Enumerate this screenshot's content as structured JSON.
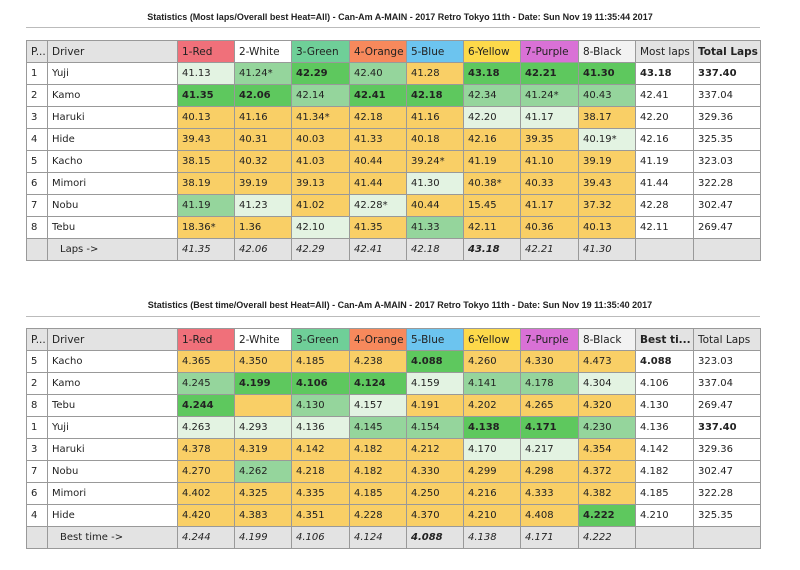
{
  "colors": {
    "Y": "#f9cf66",
    "L": "#e3f3e2",
    "M": "#95d59c",
    "D": "#5ec85e",
    "W": "#ffffff"
  },
  "tables": [
    {
      "title": "Statistics (Most laps/Overall best Heat=All) - Can-Am A-MAIN - 2017 Retro Tokyo 11th - Date: Sun Nov 19 11:35:44 2017",
      "headers": [
        {
          "label": "P...",
          "color": "#e3e3e3"
        },
        {
          "label": "Driver",
          "color": "#e3e3e3"
        },
        {
          "label": "1-Red",
          "color": "#f0707a"
        },
        {
          "label": "2-White",
          "color": "#ffffff"
        },
        {
          "label": "3-Green",
          "color": "#6fcf98"
        },
        {
          "label": "4-Orange",
          "color": "#f7895c"
        },
        {
          "label": "5-Blue",
          "color": "#6cc4ef"
        },
        {
          "label": "6-Yellow",
          "color": "#fdd94a"
        },
        {
          "label": "7-Purple",
          "color": "#d971d6"
        },
        {
          "label": "8-Black",
          "color": "#f2f2f2"
        },
        {
          "label": "Most laps",
          "color": "#e3e3e3"
        },
        {
          "label": "Total Laps",
          "color": "#e3e3e3",
          "bold": true
        }
      ],
      "rows": [
        {
          "pos": "1",
          "driver": "Yuji",
          "cells": [
            [
              "41.13",
              "L"
            ],
            [
              "41.24*",
              "M"
            ],
            [
              "42.29",
              "D",
              1
            ],
            [
              "42.40",
              "M"
            ],
            [
              "41.28",
              "Y"
            ],
            [
              "43.18",
              "D",
              1
            ],
            [
              "42.21",
              "D",
              1
            ],
            [
              "41.30",
              "D",
              1
            ],
            [
              "43.18",
              "W",
              1
            ],
            [
              "337.40",
              "W",
              1
            ]
          ]
        },
        {
          "pos": "2",
          "driver": "Kamo",
          "cells": [
            [
              "41.35",
              "D",
              1
            ],
            [
              "42.06",
              "D",
              1
            ],
            [
              "42.14",
              "M"
            ],
            [
              "42.41",
              "D",
              1
            ],
            [
              "42.18",
              "D",
              1
            ],
            [
              "42.34",
              "M"
            ],
            [
              "41.24*",
              "M"
            ],
            [
              "40.43",
              "M"
            ],
            [
              "42.41",
              "W"
            ],
            [
              "337.04",
              "W"
            ]
          ]
        },
        {
          "pos": "3",
          "driver": "Haruki",
          "cells": [
            [
              "40.13",
              "Y"
            ],
            [
              "41.16",
              "Y"
            ],
            [
              "41.34*",
              "Y"
            ],
            [
              "42.18",
              "Y"
            ],
            [
              "41.16",
              "Y"
            ],
            [
              "42.20",
              "L"
            ],
            [
              "41.17",
              "L"
            ],
            [
              "38.17",
              "Y"
            ],
            [
              "42.20",
              "W"
            ],
            [
              "329.36",
              "W"
            ]
          ]
        },
        {
          "pos": "4",
          "driver": "Hide",
          "cells": [
            [
              "39.43",
              "Y"
            ],
            [
              "40.31",
              "Y"
            ],
            [
              "40.03",
              "Y"
            ],
            [
              "41.33",
              "Y"
            ],
            [
              "40.18",
              "Y"
            ],
            [
              "42.16",
              "Y"
            ],
            [
              "39.35",
              "Y"
            ],
            [
              "40.19*",
              "L"
            ],
            [
              "42.16",
              "W"
            ],
            [
              "325.35",
              "W"
            ]
          ]
        },
        {
          "pos": "5",
          "driver": "Kacho",
          "cells": [
            [
              "38.15",
              "Y"
            ],
            [
              "40.32",
              "Y"
            ],
            [
              "41.03",
              "Y"
            ],
            [
              "40.44",
              "Y"
            ],
            [
              "39.24*",
              "Y"
            ],
            [
              "41.19",
              "Y"
            ],
            [
              "41.10",
              "Y"
            ],
            [
              "39.19",
              "Y"
            ],
            [
              "41.19",
              "W"
            ],
            [
              "323.03",
              "W"
            ]
          ]
        },
        {
          "pos": "6",
          "driver": "Mimori",
          "cells": [
            [
              "38.19",
              "Y"
            ],
            [
              "39.19",
              "Y"
            ],
            [
              "39.13",
              "Y"
            ],
            [
              "41.44",
              "Y"
            ],
            [
              "41.30",
              "L"
            ],
            [
              "40.38*",
              "Y"
            ],
            [
              "40.33",
              "Y"
            ],
            [
              "39.43",
              "Y"
            ],
            [
              "41.44",
              "W"
            ],
            [
              "322.28",
              "W"
            ]
          ]
        },
        {
          "pos": "7",
          "driver": "Nobu",
          "cells": [
            [
              "41.19",
              "M"
            ],
            [
              "41.23",
              "L"
            ],
            [
              "41.02",
              "Y"
            ],
            [
              "42.28*",
              "L"
            ],
            [
              "40.44",
              "Y"
            ],
            [
              "15.45",
              "Y"
            ],
            [
              "41.17",
              "Y"
            ],
            [
              "37.32",
              "Y"
            ],
            [
              "42.28",
              "W"
            ],
            [
              "302.47",
              "W"
            ]
          ]
        },
        {
          "pos": "8",
          "driver": "Tebu",
          "cells": [
            [
              "18.36*",
              "Y"
            ],
            [
              "1.36",
              "Y"
            ],
            [
              "42.10",
              "L"
            ],
            [
              "41.35",
              "Y"
            ],
            [
              "41.33",
              "M"
            ],
            [
              "42.11",
              "Y"
            ],
            [
              "40.36",
              "Y"
            ],
            [
              "40.13",
              "Y"
            ],
            [
              "42.11",
              "W"
            ],
            [
              "269.47",
              "W"
            ]
          ]
        }
      ],
      "footer": {
        "label": "Laps ->",
        "values": [
          [
            "41.35"
          ],
          [
            "42.06"
          ],
          [
            "42.29"
          ],
          [
            "42.41"
          ],
          [
            "42.18"
          ],
          [
            "43.18",
            1
          ],
          [
            "42.21"
          ],
          [
            "41.30"
          ],
          [
            ""
          ],
          [
            ""
          ]
        ]
      }
    },
    {
      "title": "Statistics (Best time/Overall best Heat=All) - Can-Am A-MAIN - 2017 Retro Tokyo 11th - Date: Sun Nov 19 11:35:40 2017",
      "headers": [
        {
          "label": "P...",
          "color": "#e3e3e3"
        },
        {
          "label": "Driver",
          "color": "#e3e3e3"
        },
        {
          "label": "1-Red",
          "color": "#f0707a"
        },
        {
          "label": "2-White",
          "color": "#ffffff"
        },
        {
          "label": "3-Green",
          "color": "#6fcf98"
        },
        {
          "label": "4-Orange",
          "color": "#f7895c"
        },
        {
          "label": "5-Blue",
          "color": "#6cc4ef"
        },
        {
          "label": "6-Yellow",
          "color": "#fdd94a"
        },
        {
          "label": "7-Purple",
          "color": "#d971d6"
        },
        {
          "label": "8-Black",
          "color": "#f2f2f2"
        },
        {
          "label": "Best ti...",
          "color": "#e3e3e3",
          "bold": true
        },
        {
          "label": "Total Laps",
          "color": "#e3e3e3"
        }
      ],
      "rows": [
        {
          "pos": "5",
          "driver": "Kacho",
          "cells": [
            [
              "4.365",
              "Y"
            ],
            [
              "4.350",
              "Y"
            ],
            [
              "4.185",
              "Y"
            ],
            [
              "4.238",
              "Y"
            ],
            [
              "4.088",
              "D",
              1
            ],
            [
              "4.260",
              "Y"
            ],
            [
              "4.330",
              "Y"
            ],
            [
              "4.473",
              "Y"
            ],
            [
              "4.088",
              "W",
              1
            ],
            [
              "323.03",
              "W"
            ]
          ]
        },
        {
          "pos": "2",
          "driver": "Kamo",
          "cells": [
            [
              "4.245",
              "M"
            ],
            [
              "4.199",
              "D",
              1
            ],
            [
              "4.106",
              "D",
              1
            ],
            [
              "4.124",
              "D",
              1
            ],
            [
              "4.159",
              "L"
            ],
            [
              "4.141",
              "M"
            ],
            [
              "4.178",
              "M"
            ],
            [
              "4.304",
              "L"
            ],
            [
              "4.106",
              "W"
            ],
            [
              "337.04",
              "W"
            ]
          ]
        },
        {
          "pos": "8",
          "driver": "Tebu",
          "cells": [
            [
              "4.244",
              "D",
              1
            ],
            [
              "",
              "Y"
            ],
            [
              "4.130",
              "M"
            ],
            [
              "4.157",
              "L"
            ],
            [
              "4.191",
              "Y"
            ],
            [
              "4.202",
              "Y"
            ],
            [
              "4.265",
              "Y"
            ],
            [
              "4.320",
              "Y"
            ],
            [
              "4.130",
              "W"
            ],
            [
              "269.47",
              "W"
            ]
          ]
        },
        {
          "pos": "1",
          "driver": "Yuji",
          "cells": [
            [
              "4.263",
              "L"
            ],
            [
              "4.293",
              "L"
            ],
            [
              "4.136",
              "L"
            ],
            [
              "4.145",
              "M"
            ],
            [
              "4.154",
              "M"
            ],
            [
              "4.138",
              "D",
              1
            ],
            [
              "4.171",
              "D",
              1
            ],
            [
              "4.230",
              "M"
            ],
            [
              "4.136",
              "W"
            ],
            [
              "337.40",
              "W",
              1
            ]
          ]
        },
        {
          "pos": "3",
          "driver": "Haruki",
          "cells": [
            [
              "4.378",
              "Y"
            ],
            [
              "4.319",
              "Y"
            ],
            [
              "4.142",
              "Y"
            ],
            [
              "4.182",
              "Y"
            ],
            [
              "4.212",
              "Y"
            ],
            [
              "4.170",
              "L"
            ],
            [
              "4.217",
              "L"
            ],
            [
              "4.354",
              "Y"
            ],
            [
              "4.142",
              "W"
            ],
            [
              "329.36",
              "W"
            ]
          ]
        },
        {
          "pos": "7",
          "driver": "Nobu",
          "cells": [
            [
              "4.270",
              "Y"
            ],
            [
              "4.262",
              "M"
            ],
            [
              "4.218",
              "Y"
            ],
            [
              "4.182",
              "Y"
            ],
            [
              "4.330",
              "Y"
            ],
            [
              "4.299",
              "Y"
            ],
            [
              "4.298",
              "Y"
            ],
            [
              "4.372",
              "Y"
            ],
            [
              "4.182",
              "W"
            ],
            [
              "302.47",
              "W"
            ]
          ]
        },
        {
          "pos": "6",
          "driver": "Mimori",
          "cells": [
            [
              "4.402",
              "Y"
            ],
            [
              "4.325",
              "Y"
            ],
            [
              "4.335",
              "Y"
            ],
            [
              "4.185",
              "Y"
            ],
            [
              "4.250",
              "Y"
            ],
            [
              "4.216",
              "Y"
            ],
            [
              "4.333",
              "Y"
            ],
            [
              "4.382",
              "Y"
            ],
            [
              "4.185",
              "W"
            ],
            [
              "322.28",
              "W"
            ]
          ]
        },
        {
          "pos": "4",
          "driver": "Hide",
          "cells": [
            [
              "4.420",
              "Y"
            ],
            [
              "4.383",
              "Y"
            ],
            [
              "4.351",
              "Y"
            ],
            [
              "4.228",
              "Y"
            ],
            [
              "4.370",
              "Y"
            ],
            [
              "4.210",
              "Y"
            ],
            [
              "4.408",
              "Y"
            ],
            [
              "4.222",
              "D",
              1
            ],
            [
              "4.210",
              "W"
            ],
            [
              "325.35",
              "W"
            ]
          ]
        }
      ],
      "footer": {
        "label": "Best time ->",
        "values": [
          [
            "4.244"
          ],
          [
            "4.199"
          ],
          [
            "4.106"
          ],
          [
            "4.124"
          ],
          [
            "4.088",
            1
          ],
          [
            "4.138"
          ],
          [
            "4.171"
          ],
          [
            "4.222"
          ],
          [
            ""
          ],
          [
            ""
          ]
        ]
      }
    }
  ]
}
